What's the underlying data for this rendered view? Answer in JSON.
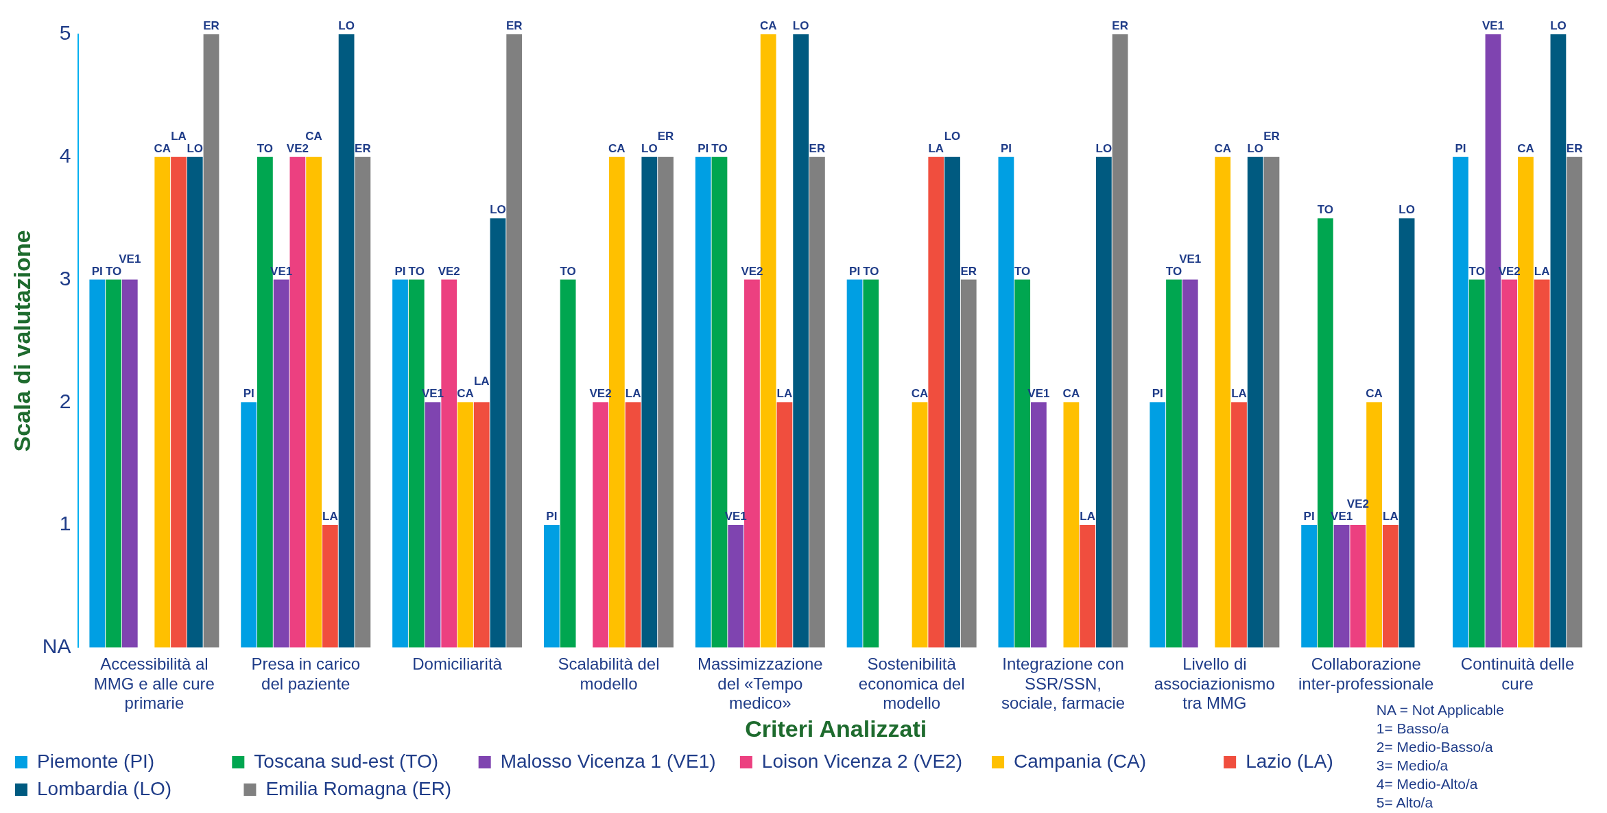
{
  "chart_data": {
    "type": "bar",
    "xlabel": "Criteri Analizzati",
    "ylabel": "Scala di valutazione",
    "categories": [
      "Accessibilità al MMG e alle cure primarie",
      "Presa in carico del paziente",
      "Domiciliarità",
      "Scalabilità del modello",
      "Massimizzazione del «Tempo medico»",
      "Sostenibilità economica del modello",
      "Integrazione con SSR/SSN, sociale, farmacie",
      "Livello di associazionismo tra MMG",
      "Collaborazione inter-professionale",
      "Continuità delle cure"
    ],
    "series": [
      {
        "name": "Piemonte (PI)",
        "color": "#009fe3",
        "values": [
          3,
          2,
          3,
          1,
          4,
          3,
          4,
          2,
          1,
          4
        ],
        "value_labels": [
          "PI",
          "PI",
          "PI",
          "PI",
          "PI",
          "PI",
          "PI",
          "PI",
          "PI",
          "PI"
        ]
      },
      {
        "name": "Toscana sud-est (TO)",
        "color": "#00a650",
        "values": [
          3,
          4,
          3,
          3,
          4,
          3,
          3,
          3,
          3.5,
          3
        ],
        "value_labels": [
          "TO",
          "TO",
          "TO",
          "TO",
          "TO",
          "TO",
          "TO",
          "TO",
          "TO",
          "TO"
        ]
      },
      {
        "name": "Malosso Vicenza 1 (VE1)",
        "color": "#7f44b0",
        "values": [
          3,
          3,
          2,
          null,
          1,
          null,
          2,
          3,
          1,
          5
        ],
        "value_labels": [
          "VE1",
          "VE1",
          "VE1",
          null,
          "VE1",
          null,
          "VE1",
          "VE1",
          "VE1",
          "VE1"
        ]
      },
      {
        "name": "Loison Vicenza 2 (VE2)",
        "color": "#ec4080",
        "values": [
          null,
          4,
          3,
          2,
          3,
          null,
          null,
          null,
          1,
          3
        ],
        "value_labels": [
          null,
          "VE2",
          "VE2",
          "VE2",
          "VE2",
          null,
          null,
          null,
          "VE2",
          "VE2"
        ]
      },
      {
        "name": "Campania (CA)",
        "color": "#ffc000",
        "values": [
          4,
          4,
          2,
          4,
          5,
          2,
          2,
          4,
          2,
          4
        ],
        "value_labels": [
          "CA",
          "CA",
          "CA",
          "CA",
          "CA",
          "CA",
          "CA",
          "CA",
          "CA",
          "CA"
        ]
      },
      {
        "name": "Lazio (LA)",
        "color": "#f04e3e",
        "values": [
          4,
          1,
          2,
          2,
          2,
          4,
          1,
          2,
          1,
          3
        ],
        "value_labels": [
          "LA",
          "LA",
          "LA",
          "LA",
          "LA",
          "LA",
          "LA",
          "LA",
          "LA",
          "LA"
        ]
      },
      {
        "name": "Lombardia (LO)",
        "color": "#005a80",
        "values": [
          4,
          5,
          3.5,
          4,
          5,
          4,
          4,
          4,
          3.5,
          5
        ],
        "value_labels": [
          "LO",
          "LO",
          "LO",
          "LO",
          "LO",
          "LO",
          "LO",
          "LO",
          "LO",
          "LO"
        ]
      },
      {
        "name": "Emilia Romagna (ER)",
        "color": "#808080",
        "values": [
          5,
          4,
          5,
          4,
          4,
          3,
          5,
          4,
          null,
          4
        ],
        "value_labels": [
          "ER",
          "ER",
          "ER",
          "ER",
          "ER",
          "ER",
          "ER",
          "ER",
          null,
          "ER"
        ]
      }
    ],
    "ylim": [
      0,
      5
    ],
    "yticks": [
      {
        "value": 0,
        "label": "NA"
      },
      1,
      2,
      3,
      4,
      5
    ],
    "grid": false,
    "legend": "bottom left",
    "annotations": [
      "NA = Not Applicable",
      "1= Basso/a",
      "2= Medio-Basso/a",
      "3= Medio/a",
      "4= Medio-Alto/a",
      "5= Alto/a"
    ]
  }
}
